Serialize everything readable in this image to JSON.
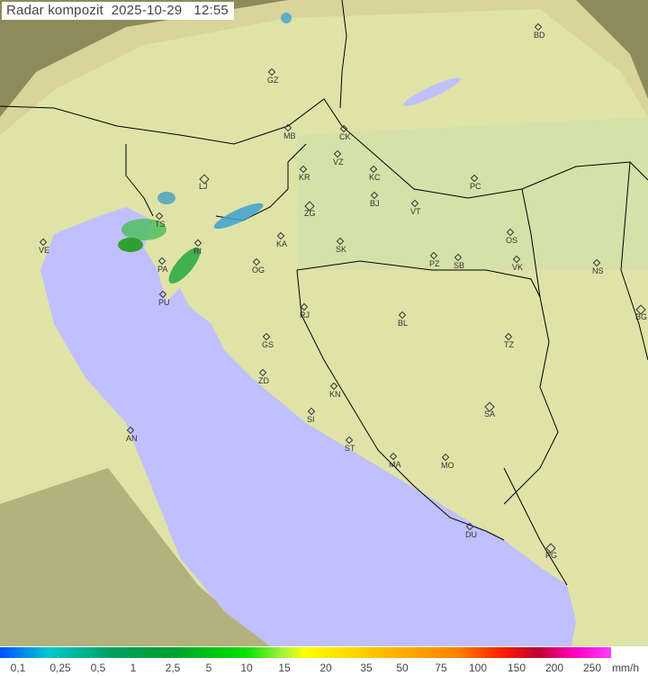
{
  "title": "Radar kompozit  2025-10-29   12:55",
  "colors": {
    "sea": "#c0c0ff",
    "land": "#e6e6b0",
    "outside": "#8a8a60",
    "coverage_edge": "#f0f0c8",
    "border": "#000000"
  },
  "cities": [
    "BD",
    "GZ",
    "MB",
    "CK",
    "VZ",
    "KR",
    "KC",
    "LJ",
    "PC",
    "BJ",
    "ZG",
    "VT",
    "TS",
    "KA",
    "SK",
    "OS",
    "VE",
    "RI",
    "PZ",
    "SB",
    "VK",
    "NS",
    "PA",
    "OG",
    "PU",
    "BG",
    "RJ",
    "BL",
    "TZ",
    "GS",
    "ZD",
    "KN",
    "SA",
    "SI",
    "AN",
    "ST",
    "MO",
    "MA",
    "DU",
    "PG"
  ],
  "legend": {
    "labels": [
      "0,1",
      "0,25",
      "0,5",
      "1",
      "2,5",
      "5",
      "10",
      "15",
      "20",
      "35",
      "50",
      "75",
      "100",
      "150",
      "200",
      "250"
    ],
    "unit": "mm/h"
  }
}
